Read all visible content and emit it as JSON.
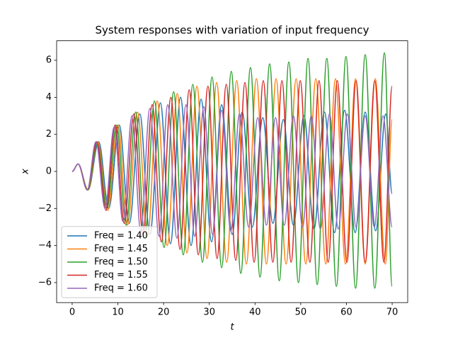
{
  "chart_data": {
    "type": "line",
    "title": "System responses with variation of input frequency",
    "xlabel": "t",
    "ylabel": "x",
    "xlim": [
      -3.4,
      73.4
    ],
    "ylim": [
      -7.08,
      7.05
    ],
    "xticks": [
      0,
      10,
      20,
      30,
      40,
      50,
      60,
      70
    ],
    "yticks": [
      {
        "value": -6,
        "label": "−6"
      },
      {
        "value": -4,
        "label": "−4"
      },
      {
        "value": -2,
        "label": "−2"
      },
      0,
      2,
      4,
      6
    ],
    "legend": "lower left",
    "series": [
      {
        "name": "Freq = 1.40",
        "color": "#1f77b4",
        "x": [
          0,
          1.3,
          3.5,
          5.8,
          8.0,
          10.3,
          12.5,
          14.8,
          17.0,
          19.3,
          21.5,
          23.7,
          26.0,
          28.2,
          30.5,
          32.7,
          35.0,
          37.2,
          39.4,
          41.7,
          43.9,
          46.2,
          48.4,
          50.7,
          52.9,
          55.2,
          57.4,
          59.6,
          61.9,
          64.1,
          66.4,
          68.6,
          70
        ],
        "values": [
          0,
          0.4,
          -1.0,
          1.6,
          -2.0,
          2.5,
          -2.8,
          3.1,
          -3.4,
          3.7,
          -3.9,
          4.0,
          -4.0,
          3.9,
          -3.8,
          3.6,
          -3.4,
          3.2,
          -3.0,
          2.9,
          -2.8,
          2.8,
          -2.9,
          3.0,
          -3.1,
          3.2,
          -3.3,
          3.3,
          -3.3,
          3.2,
          -3.2,
          3.1,
          -1.2
        ]
      },
      {
        "name": "Freq = 1.45",
        "color": "#ff7f0e",
        "x": [
          0,
          1.3,
          3.5,
          5.6,
          7.8,
          10.0,
          12.1,
          14.3,
          16.5,
          18.6,
          20.8,
          23.0,
          25.1,
          27.3,
          29.5,
          31.6,
          33.8,
          36.0,
          38.1,
          40.3,
          42.5,
          44.6,
          46.8,
          49.0,
          51.1,
          53.3,
          55.5,
          57.6,
          59.8,
          62.0,
          64.1,
          66.3,
          68.5,
          70
        ],
        "values": [
          0,
          0.4,
          -1.0,
          1.6,
          -2.1,
          2.5,
          -2.9,
          3.2,
          -3.5,
          3.8,
          -4.0,
          4.2,
          -4.4,
          4.6,
          -4.7,
          4.8,
          -4.9,
          4.9,
          -5.0,
          5.0,
          -5.0,
          5.0,
          -5.0,
          5.0,
          -5.0,
          5.0,
          -5.0,
          5.0,
          -5.0,
          5.0,
          -5.0,
          5.0,
          -5.0,
          2.8
        ]
      },
      {
        "name": "Freq = 1.50",
        "color": "#2ca02c",
        "x": [
          0,
          1.3,
          3.4,
          5.5,
          7.6,
          9.7,
          11.8,
          13.9,
          15.9,
          18.0,
          20.1,
          22.2,
          24.3,
          26.4,
          28.5,
          30.6,
          32.7,
          34.8,
          36.9,
          39.0,
          41.1,
          43.2,
          45.3,
          47.4,
          49.5,
          51.6,
          53.6,
          55.7,
          57.8,
          59.9,
          62.0,
          64.1,
          66.2,
          68.3,
          70
        ],
        "values": [
          0,
          0.4,
          -1.0,
          1.5,
          -2.0,
          2.5,
          -2.9,
          3.2,
          -3.5,
          3.8,
          -4.1,
          4.3,
          -4.5,
          4.7,
          -4.9,
          5.1,
          -5.2,
          5.4,
          -5.5,
          5.6,
          -5.7,
          5.8,
          -5.9,
          5.9,
          -6.0,
          6.1,
          -6.1,
          6.1,
          -6.2,
          6.2,
          -6.3,
          6.3,
          -6.3,
          6.4,
          -6.2
        ]
      },
      {
        "name": "Freq = 1.55",
        "color": "#d62728",
        "x": [
          0,
          1.3,
          3.3,
          5.4,
          7.4,
          9.4,
          11.4,
          13.5,
          15.5,
          17.5,
          19.5,
          21.6,
          23.6,
          25.6,
          27.6,
          29.7,
          31.7,
          33.7,
          35.8,
          37.8,
          39.8,
          41.8,
          43.9,
          45.9,
          47.9,
          49.9,
          52.0,
          54.0,
          56.0,
          58.0,
          60.1,
          62.1,
          64.1,
          66.2,
          68.2,
          70
        ],
        "values": [
          0,
          0.4,
          -1.0,
          1.6,
          -2.1,
          2.5,
          -2.8,
          3.1,
          -3.4,
          3.6,
          -3.8,
          4.0,
          -4.2,
          4.4,
          -4.5,
          4.6,
          -4.7,
          4.7,
          -4.8,
          4.8,
          -4.9,
          4.9,
          -4.9,
          4.9,
          -4.9,
          4.9,
          -4.9,
          4.9,
          -4.9,
          4.9,
          -4.9,
          4.9,
          -4.9,
          4.9,
          -4.9,
          4.6
        ]
      },
      {
        "name": "Freq = 1.60",
        "color": "#9467bd",
        "x": [
          0,
          1.3,
          3.3,
          5.2,
          7.2,
          9.2,
          11.1,
          13.1,
          15.0,
          17.0,
          19.0,
          20.9,
          22.9,
          24.9,
          26.8,
          28.8,
          30.7,
          32.7,
          34.7,
          36.6,
          38.6,
          40.6,
          42.5,
          44.5,
          46.4,
          48.4,
          50.4,
          52.3,
          54.3,
          56.3,
          58.2,
          60.2,
          62.1,
          64.1,
          66.1,
          68.0,
          70.0
        ],
        "values": [
          0,
          0.4,
          -1.0,
          1.6,
          -2.0,
          2.4,
          -2.7,
          3.0,
          -3.2,
          3.4,
          -3.5,
          3.6,
          -3.6,
          3.6,
          -3.5,
          3.5,
          -3.4,
          3.3,
          -3.2,
          3.1,
          -3.0,
          2.9,
          -2.9,
          2.9,
          -2.9,
          3.0,
          -3.0,
          3.0,
          -3.1,
          3.1,
          -3.1,
          3.1,
          -3.0,
          3.0,
          -3.0,
          3.0,
          -3.0
        ]
      }
    ]
  }
}
